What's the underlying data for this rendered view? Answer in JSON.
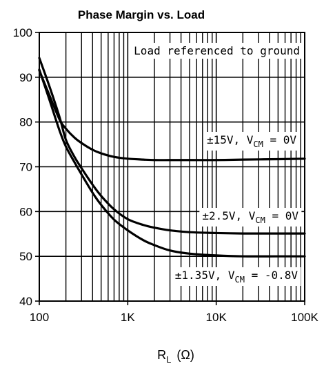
{
  "chart_data": {
    "type": "line",
    "title": "Phase Margin vs. Load",
    "xlabel_main": "R",
    "xlabel_sub": "L",
    "xlabel_unit": "(Ω)",
    "ylabel": "",
    "x_scale": "log",
    "xlim": [
      100,
      100000
    ],
    "ylim": [
      40,
      100
    ],
    "grid": true,
    "x_ticks": [
      100,
      1000,
      10000,
      100000
    ],
    "x_tick_labels": [
      "100",
      "1K",
      "10K",
      "100K"
    ],
    "y_ticks": [
      40,
      50,
      60,
      70,
      80,
      90,
      100
    ],
    "y_tick_labels": [
      "40",
      "50",
      "60",
      "70",
      "80",
      "90",
      "100"
    ],
    "annotations": [
      {
        "id": "note",
        "text": "Load referenced to ground",
        "parts": []
      },
      {
        "id": "s15",
        "parts": [
          {
            "t": "±15V, V"
          },
          {
            "t": "CM",
            "sub": true
          },
          {
            "t": " = 0V"
          }
        ]
      },
      {
        "id": "s25",
        "parts": [
          {
            "t": "±2.5V, V"
          },
          {
            "t": "CM",
            "sub": true
          },
          {
            "t": " = 0V"
          }
        ]
      },
      {
        "id": "s135",
        "parts": [
          {
            "t": "±1.35V, V"
          },
          {
            "t": "CM",
            "sub": true
          },
          {
            "t": " = -0.8V"
          }
        ]
      }
    ],
    "series": [
      {
        "key": "s15",
        "x": [
          100,
          130,
          170,
          200,
          250,
          300,
          400,
          500,
          700,
          1000,
          1500,
          2000,
          3000,
          5000,
          10000,
          20000,
          50000,
          100000
        ],
        "y": [
          91.5,
          86,
          80.5,
          78.5,
          76.5,
          75.3,
          73.8,
          73,
          72.2,
          71.8,
          71.6,
          71.5,
          71.5,
          71.5,
          71.5,
          71.6,
          71.7,
          71.8
        ]
      },
      {
        "key": "s25",
        "x": [
          100,
          130,
          170,
          200,
          250,
          300,
          400,
          500,
          700,
          1000,
          1500,
          2000,
          3000,
          5000,
          10000,
          20000,
          50000,
          100000
        ],
        "y": [
          94.3,
          88,
          81,
          76,
          72.2,
          69.7,
          66,
          63.5,
          60.5,
          58.3,
          57,
          56.4,
          55.8,
          55.4,
          55.2,
          55.1,
          55.1,
          55.1
        ]
      },
      {
        "key": "s135",
        "x": [
          100,
          130,
          170,
          200,
          250,
          300,
          400,
          500,
          700,
          1000,
          1500,
          2000,
          3000,
          5000,
          10000,
          20000,
          50000,
          100000
        ],
        "y": [
          91.7,
          85,
          78,
          74.5,
          71,
          68.3,
          64.2,
          61.5,
          58.2,
          55.8,
          53.6,
          52.5,
          51.3,
          50.6,
          50.2,
          50.0,
          50.0,
          50.0
        ]
      }
    ]
  }
}
